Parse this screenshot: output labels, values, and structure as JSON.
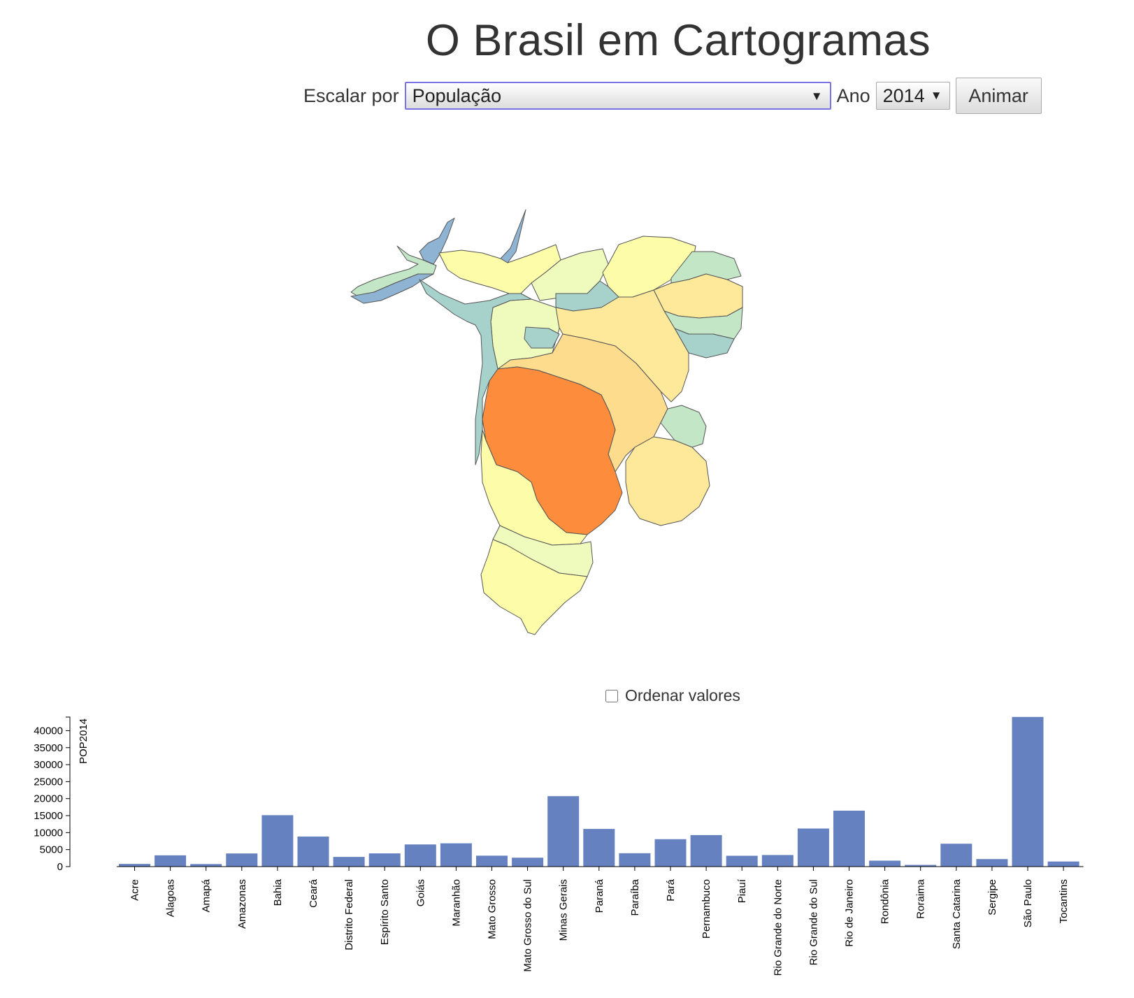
{
  "page": {
    "title": "O Brasil em Cartogramas"
  },
  "controls": {
    "scale_label": "Escalar por",
    "scale_value": "População",
    "year_label": "Ano",
    "year_value": "2014",
    "animate_label": "Animar"
  },
  "sort": {
    "label": "Ordenar valores",
    "checked": false
  },
  "colors": {
    "bar": "#6581c0",
    "map_stroke": "#555555",
    "map_palette": [
      "#fd8d3c",
      "#fddc8e",
      "#fee99b",
      "#fdfca9",
      "#eefbbc",
      "#c3e6c7",
      "#a7d2cc",
      "#8fb4d3"
    ]
  },
  "chart_data": {
    "type": "bar",
    "ylabel": "POP2014",
    "ylim": [
      0,
      44000
    ],
    "yticks": [
      0,
      5000,
      10000,
      15000,
      20000,
      25000,
      30000,
      35000,
      40000
    ],
    "categories": [
      "Acre",
      "Alagoas",
      "Amapá",
      "Amazonas",
      "Bahia",
      "Ceará",
      "Distrito Federal",
      "Espírito Santo",
      "Goiás",
      "Maranhão",
      "Mato Grosso",
      "Mato Grosso do Sul",
      "Minas Gerais",
      "Paraná",
      "Paraíba",
      "Pará",
      "Pernambuco",
      "Piauí",
      "Rio Grande do Norte",
      "Rio Grande do Sul",
      "Rio de Janeiro",
      "Rondônia",
      "Roraima",
      "Santa Catarina",
      "Sergipe",
      "São Paulo",
      "Tocantins"
    ],
    "values": [
      790,
      3320,
      750,
      3870,
      15130,
      8840,
      2850,
      3890,
      6520,
      6850,
      3220,
      2620,
      20730,
      11080,
      3940,
      8070,
      9280,
      3190,
      3410,
      11210,
      16460,
      1750,
      500,
      6730,
      2220,
      44030,
      1500
    ]
  }
}
